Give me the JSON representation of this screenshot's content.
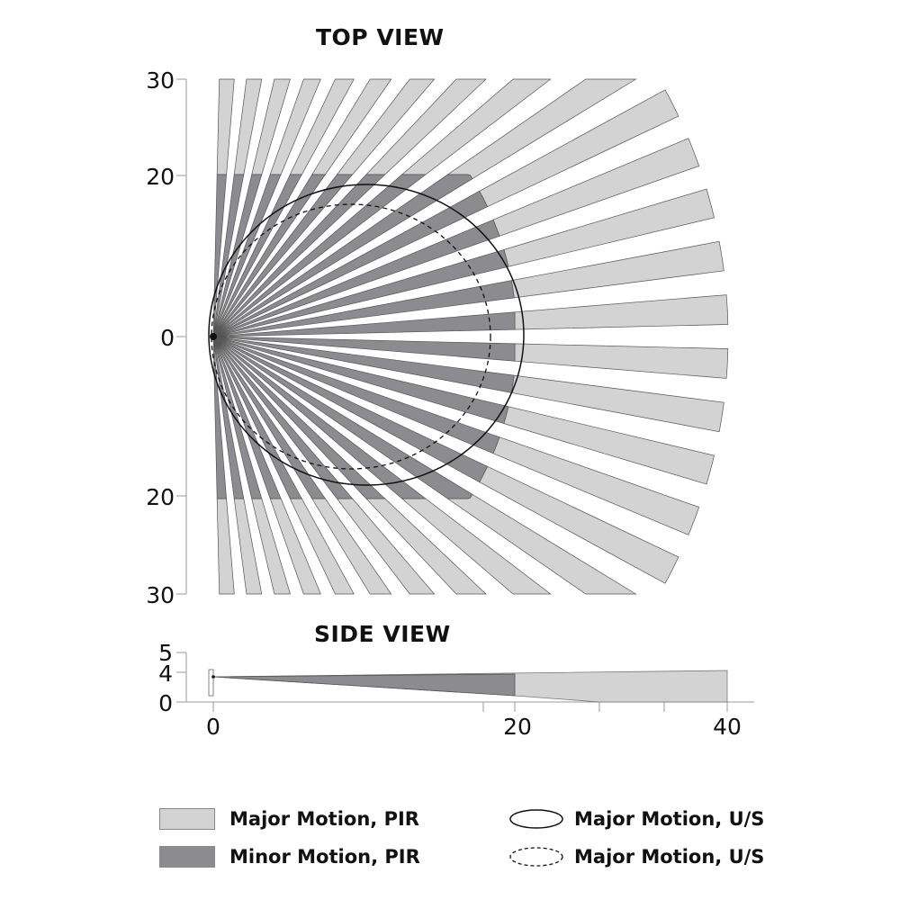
{
  "top_view": {
    "title": "TOP VIEW",
    "y_ticks": [
      "30",
      "20",
      "0",
      "20",
      "30"
    ]
  },
  "side_view": {
    "title": "SIDE VIEW",
    "y_ticks": [
      "5",
      "4",
      "0"
    ],
    "x_ticks": [
      "0",
      "20",
      "40"
    ]
  },
  "colors": {
    "major_pir": "#d3d3d3",
    "minor_pir": "#8c8c90",
    "stroke": "#555555"
  },
  "legend": {
    "major_pir": "Major Motion, PIR",
    "minor_pir": "Minor Motion, PIR",
    "major_us_solid": "Major Motion, U/S",
    "major_us_dashed": "Major Motion, U/S"
  }
}
